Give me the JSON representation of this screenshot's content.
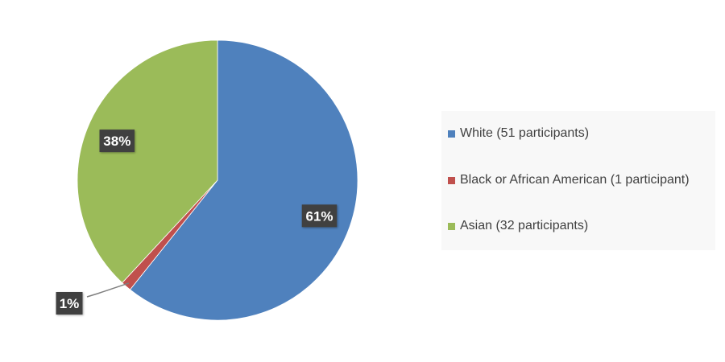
{
  "chart_data": {
    "type": "pie",
    "categories": [
      "White (51 participants)",
      "Black or African American (1 participant)",
      "Asian (32 participants)"
    ],
    "values": [
      51,
      1,
      32
    ],
    "data_labels": [
      "61%",
      "1%",
      "38%"
    ],
    "colors": [
      "#4f81bd",
      "#c0504d",
      "#9bbb59"
    ],
    "start_angle_deg": 0,
    "direction": "clockwise",
    "legend": "right",
    "title": ""
  }
}
